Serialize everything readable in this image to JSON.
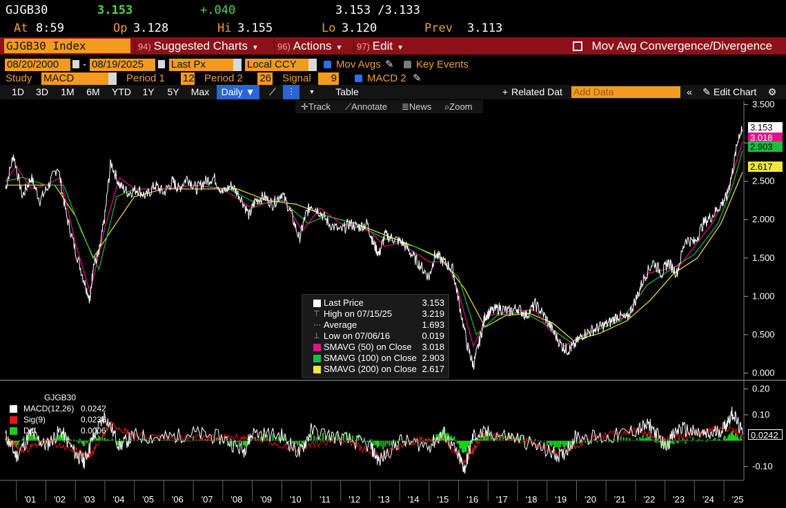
{
  "quote": {
    "ticker": "GJGB30",
    "last": "3.153",
    "change": "+.040",
    "bid_ask": "3.153 /3.133",
    "at_label": "At",
    "time": "8:59",
    "open_label": "Op",
    "open": "3.128",
    "high_label": "Hi",
    "high": "3.155",
    "low_label": "Lo",
    "low": "3.120",
    "prev_label": "Prev",
    "prev": "3.113"
  },
  "command_bar": {
    "security": "GJGB30 Index",
    "menus": [
      {
        "num": "94)",
        "label": "Suggested Charts"
      },
      {
        "num": "96)",
        "label": "Actions"
      },
      {
        "num": "97)",
        "label": "Edit"
      }
    ],
    "study_title": "Mov Avg Convergence/Divergence"
  },
  "settings": {
    "start_date": "08/20/2000",
    "end_date": "08/19/2025",
    "date_sep": "-",
    "price_field": "Last Px",
    "currency": "Local CCY",
    "mov_avgs_label": "Mov Avgs",
    "key_events_label": "Key Events",
    "study_label": "Study",
    "study_value": "MACD",
    "period1_label": "Period 1",
    "period1_value": "12",
    "period2_label": "Period 2",
    "period2_value": "26",
    "signal_label": "Signal",
    "signal_value": "9",
    "macd2_label": "MACD 2"
  },
  "toolbar": {
    "ranges": [
      "1D",
      "3D",
      "1M",
      "6M",
      "YTD",
      "1Y",
      "5Y",
      "Max"
    ],
    "frequency": "Daily",
    "table_label": "Table",
    "related_label": "Related Dat",
    "add_data_placeholder": "Add Data",
    "edit_chart_label": "Edit Chart",
    "track_label": "Track",
    "annotate_label": "Annotate",
    "news_label": "News",
    "zoom_label": "Zoom"
  },
  "legend": {
    "rows": [
      {
        "label": "Last Price",
        "value": "3.153",
        "color": "#ffffff"
      },
      {
        "label": "High on 07/15/25",
        "value": "3.219",
        "color": ""
      },
      {
        "label": "Average",
        "value": "1.693",
        "color": ""
      },
      {
        "label": "Low on 07/06/16",
        "value": "0.019",
        "color": ""
      },
      {
        "label": "SMAVG (50)  on Close",
        "value": "3.018",
        "color": "#e0138c"
      },
      {
        "label": "SMAVG (100)  on Close",
        "value": "2.903",
        "color": "#19c040"
      },
      {
        "label": "SMAVG (200)  on Close",
        "value": "2.617",
        "color": "#f3e83a"
      }
    ]
  },
  "price_tags": [
    {
      "value": "3.153",
      "bg": "#ffffff",
      "fg": "#000000"
    },
    {
      "value": "3.018",
      "bg": "#e0138c",
      "fg": "#ffffff"
    },
    {
      "value": "2.903",
      "bg": "#19c040",
      "fg": "#000000"
    },
    {
      "value": "2.617",
      "bg": "#f3e83a",
      "fg": "#000000"
    }
  ],
  "macd_legend": {
    "title": "GJGB30",
    "rows": [
      {
        "label": "MACD(12,26)",
        "value": "0.0242",
        "color": "#ffffff"
      },
      {
        "label": "Sig(9)",
        "value": "0.0236",
        "color": "#e01818"
      },
      {
        "label": "Diff",
        "value": "0.0006",
        "color": "#19d019"
      }
    ],
    "tag": "0.0242"
  },
  "chart_data": {
    "type": "line",
    "price_axis": {
      "ticks": [
        "3.500",
        "3.000",
        "2.500",
        "2.000",
        "1.500",
        "1.000",
        "0.500",
        "0.000"
      ],
      "ylim": [
        -0.05,
        3.55
      ]
    },
    "macd_axis": {
      "ticks": [
        "0.20",
        "0.10",
        "-0.10"
      ],
      "ylim": [
        -0.14,
        0.22
      ]
    },
    "x_ticks": [
      "'01",
      "'02",
      "'03",
      "'04",
      "'05",
      "'06",
      "'07",
      "'08",
      "'09",
      "'10",
      "'11",
      "'12",
      "'13",
      "'14",
      "'15",
      "'16",
      "'17",
      "'18",
      "'19",
      "'20",
      "'21",
      "'22",
      "'23",
      "'24",
      "'25"
    ],
    "x_range": [
      2000.63,
      2025.63
    ],
    "series": [
      {
        "name": "Last Price",
        "color": "#ffffff",
        "x": [
          2000.63,
          2000.9,
          2001.2,
          2001.5,
          2001.8,
          2002.1,
          2002.4,
          2002.7,
          2003.0,
          2003.3,
          2003.5,
          2003.6,
          2003.8,
          2004.0,
          2004.2,
          2004.5,
          2004.8,
          2005.1,
          2005.4,
          2005.7,
          2006.0,
          2006.3,
          2006.5,
          2006.8,
          2007.1,
          2007.4,
          2007.7,
          2008.0,
          2008.3,
          2008.6,
          2008.9,
          2009.1,
          2009.4,
          2009.7,
          2010.0,
          2010.3,
          2010.6,
          2010.8,
          2011.0,
          2011.3,
          2011.6,
          2012.0,
          2012.3,
          2012.6,
          2012.9,
          2013.1,
          2013.3,
          2013.5,
          2013.8,
          2014.1,
          2014.4,
          2014.7,
          2015.0,
          2015.2,
          2015.5,
          2015.8,
          2016.0,
          2016.3,
          2016.5,
          2016.7,
          2016.9,
          2017.1,
          2017.4,
          2017.7,
          2018.0,
          2018.3,
          2018.6,
          2018.9,
          2019.2,
          2019.5,
          2019.7,
          2019.9,
          2020.2,
          2020.5,
          2020.8,
          2021.1,
          2021.4,
          2021.7,
          2022.0,
          2022.3,
          2022.6,
          2022.9,
          2023.1,
          2023.4,
          2023.7,
          2024.0,
          2024.3,
          2024.6,
          2024.9,
          2025.1,
          2025.3,
          2025.5,
          2025.63
        ],
        "y": [
          2.4,
          2.85,
          2.3,
          2.55,
          2.25,
          2.45,
          2.7,
          2.05,
          1.6,
          1.2,
          0.95,
          1.4,
          1.55,
          2.05,
          2.75,
          2.45,
          2.35,
          2.4,
          2.3,
          2.45,
          2.35,
          2.5,
          2.4,
          2.55,
          2.4,
          2.5,
          2.55,
          2.35,
          2.45,
          2.3,
          2.05,
          2.25,
          2.3,
          2.2,
          2.35,
          2.1,
          1.75,
          2.05,
          2.2,
          2.1,
          1.95,
          1.85,
          1.95,
          1.9,
          1.95,
          1.7,
          1.55,
          1.8,
          1.75,
          1.7,
          1.55,
          1.4,
          1.25,
          1.55,
          1.45,
          1.35,
          0.95,
          0.35,
          0.1,
          0.4,
          0.75,
          0.8,
          0.85,
          0.8,
          0.85,
          0.75,
          0.9,
          0.75,
          0.55,
          0.35,
          0.3,
          0.35,
          0.5,
          0.55,
          0.6,
          0.65,
          0.75,
          0.7,
          0.95,
          1.25,
          1.45,
          1.3,
          1.45,
          1.3,
          1.75,
          1.7,
          1.95,
          2.05,
          2.2,
          2.3,
          2.65,
          3.1,
          3.15
        ]
      },
      {
        "name": "SMAVG (50)  on Close",
        "color": "#e0138c",
        "x": [
          2000.63,
          2001.0,
          2001.5,
          2002.0,
          2002.5,
          2003.0,
          2003.5,
          2004.0,
          2004.5,
          2005.0,
          2006.0,
          2007.0,
          2008.0,
          2009.0,
          2010.0,
          2010.7,
          2011.3,
          2012.0,
          2013.0,
          2013.5,
          2014.0,
          2015.0,
          2015.6,
          2016.0,
          2016.5,
          2017.0,
          2018.0,
          2018.6,
          2019.0,
          2019.6,
          2020.0,
          2021.0,
          2021.8,
          2022.4,
          2023.0,
          2023.5,
          2024.0,
          2024.6,
          2025.0,
          2025.3,
          2025.63
        ],
        "y": [
          2.5,
          2.7,
          2.4,
          2.45,
          2.55,
          1.7,
          1.05,
          1.9,
          2.55,
          2.4,
          2.4,
          2.45,
          2.4,
          2.15,
          2.3,
          1.85,
          2.15,
          1.95,
          1.85,
          1.65,
          1.7,
          1.45,
          1.45,
          1.05,
          0.35,
          0.75,
          0.82,
          0.82,
          0.6,
          0.35,
          0.45,
          0.65,
          0.75,
          1.3,
          1.35,
          1.4,
          1.65,
          1.95,
          2.25,
          2.6,
          3.02
        ]
      },
      {
        "name": "SMAVG (100)  on Close",
        "color": "#19c040",
        "x": [
          2000.63,
          2001.2,
          2002.0,
          2002.6,
          2003.2,
          2003.8,
          2004.4,
          2005.0,
          2006.0,
          2007.0,
          2008.2,
          2009.2,
          2010.0,
          2010.9,
          2011.5,
          2012.5,
          2013.5,
          2014.5,
          2015.3,
          2016.0,
          2016.6,
          2017.3,
          2018.2,
          2019.0,
          2019.8,
          2020.6,
          2021.5,
          2022.4,
          2023.2,
          2024.0,
          2024.8,
          2025.3,
          2025.63
        ],
        "y": [
          2.5,
          2.55,
          2.45,
          2.45,
          1.85,
          1.35,
          2.3,
          2.4,
          2.4,
          2.45,
          2.4,
          2.2,
          2.25,
          1.95,
          2.05,
          1.95,
          1.75,
          1.65,
          1.5,
          1.25,
          0.5,
          0.75,
          0.8,
          0.62,
          0.4,
          0.55,
          0.68,
          1.15,
          1.35,
          1.55,
          1.95,
          2.45,
          2.9
        ]
      },
      {
        "name": "SMAVG (200)  on Close",
        "color": "#f3e83a",
        "x": [
          2000.63,
          2001.5,
          2002.3,
          2003.0,
          2003.6,
          2004.2,
          2005.0,
          2006.0,
          2007.0,
          2008.5,
          2009.5,
          2010.5,
          2011.5,
          2012.5,
          2013.5,
          2014.5,
          2015.4,
          2016.2,
          2016.9,
          2017.6,
          2018.4,
          2019.2,
          2019.9,
          2020.8,
          2021.7,
          2022.5,
          2023.3,
          2024.1,
          2024.9,
          2025.63
        ],
        "y": [
          2.45,
          2.45,
          2.45,
          2.05,
          1.5,
          1.85,
          2.3,
          2.4,
          2.4,
          2.4,
          2.25,
          2.2,
          2.05,
          1.95,
          1.8,
          1.65,
          1.5,
          1.1,
          0.6,
          0.75,
          0.78,
          0.65,
          0.42,
          0.52,
          0.68,
          0.95,
          1.3,
          1.5,
          1.95,
          2.62
        ]
      }
    ],
    "macd_series": [
      {
        "name": "MACD(12,26)",
        "color": "#ffffff",
        "x": [
          2000.63,
          2001.0,
          2001.5,
          2002.0,
          2002.5,
          2003.0,
          2003.3,
          2003.6,
          2004.0,
          2004.5,
          2005.0,
          2006.0,
          2007.0,
          2008.0,
          2008.7,
          2009.0,
          2010.0,
          2010.6,
          2011.0,
          2012.0,
          2013.0,
          2013.3,
          2014.0,
          2015.0,
          2015.5,
          2016.0,
          2016.2,
          2016.5,
          2017.0,
          2018.0,
          2019.0,
          2019.5,
          2020.0,
          2021.0,
          2022.0,
          2022.5,
          2023.0,
          2023.5,
          2024.0,
          2024.5,
          2025.0,
          2025.3,
          2025.63
        ],
        "y": [
          0.02,
          -0.06,
          0.03,
          -0.02,
          0.04,
          -0.05,
          -0.08,
          0.01,
          0.1,
          -0.02,
          0.02,
          0.01,
          0.03,
          0.01,
          -0.04,
          0.03,
          0.02,
          -0.05,
          0.04,
          0.01,
          -0.02,
          -0.08,
          0.0,
          -0.02,
          0.03,
          -0.06,
          -0.11,
          0.02,
          0.03,
          0.01,
          -0.04,
          -0.06,
          0.02,
          0.01,
          0.04,
          0.06,
          -0.02,
          0.05,
          0.03,
          0.02,
          0.05,
          0.11,
          0.0242
        ]
      },
      {
        "name": "Sig(9)",
        "color": "#e01818",
        "x": [
          2000.63,
          2001.2,
          2002.0,
          2003.0,
          2003.5,
          2004.2,
          2005.0,
          2006.5,
          2008.0,
          2009.0,
          2010.5,
          2012.0,
          2013.3,
          2014.5,
          2015.5,
          2016.2,
          2016.8,
          2018.0,
          2019.4,
          2020.5,
          2022.0,
          2023.0,
          2024.0,
          2025.0,
          2025.63
        ],
        "y": [
          0.01,
          -0.04,
          0.0,
          -0.04,
          -0.06,
          0.07,
          0.02,
          0.01,
          0.01,
          0.01,
          -0.03,
          0.01,
          -0.06,
          0.0,
          0.01,
          -0.09,
          0.02,
          0.01,
          -0.05,
          0.01,
          0.04,
          0.0,
          0.03,
          0.05,
          0.0236
        ]
      }
    ]
  }
}
